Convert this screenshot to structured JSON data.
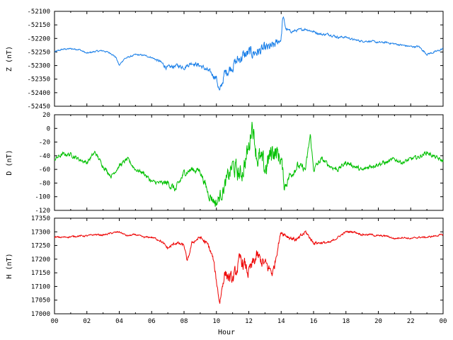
{
  "chart_data": [
    {
      "type": "line",
      "ylabel": "Z (nT)",
      "color": "#1a7fe8",
      "ylim": [
        -52450,
        -52100
      ],
      "yticks": [
        -52100,
        -52150,
        -52200,
        -52250,
        -52300,
        -52350,
        -52400,
        -52450
      ],
      "x": [
        0,
        0.5,
        1,
        1.5,
        2,
        2.5,
        3,
        3.5,
        3.8,
        4,
        4.3,
        5,
        5.5,
        6,
        6.5,
        7,
        7.5,
        8,
        8.5,
        9,
        9.5,
        10,
        10.2,
        10.5,
        11,
        11.5,
        12,
        12.5,
        13,
        13.5,
        14,
        14.1,
        14.3,
        14.6,
        15,
        15.5,
        16,
        16.5,
        17,
        17.5,
        18,
        18.5,
        19,
        19.5,
        20,
        20.5,
        21,
        21.5,
        22,
        22.5,
        23,
        23.5,
        24
      ],
      "values": [
        -52250,
        -52240,
        -52238,
        -52240,
        -52255,
        -52248,
        -52245,
        -52255,
        -52270,
        -52300,
        -52275,
        -52260,
        -52262,
        -52270,
        -52285,
        -52310,
        -52300,
        -52305,
        -52290,
        -52300,
        -52320,
        -52345,
        -52400,
        -52330,
        -52300,
        -52270,
        -52255,
        -52250,
        -52240,
        -52230,
        -52200,
        -52120,
        -52165,
        -52175,
        -52170,
        -52165,
        -52175,
        -52185,
        -52185,
        -52195,
        -52195,
        -52205,
        -52210,
        -52210,
        -52215,
        -52215,
        -52220,
        -52225,
        -52230,
        -52230,
        -52258,
        -52250,
        -52238
      ],
      "noise": [
        5,
        5,
        5,
        5,
        5,
        5,
        5,
        5,
        5,
        5,
        5,
        5,
        5,
        5,
        10,
        15,
        12,
        15,
        12,
        15,
        15,
        20,
        25,
        30,
        35,
        40,
        40,
        35,
        35,
        30,
        20,
        20,
        10,
        8,
        8,
        8,
        8,
        8,
        8,
        8,
        6,
        6,
        6,
        6,
        6,
        6,
        6,
        6,
        6,
        6,
        6,
        6,
        6
      ]
    },
    {
      "type": "line",
      "ylabel": "D (nT)",
      "color": "#00c000",
      "ylim": [
        -120,
        20
      ],
      "yticks": [
        20,
        0,
        -20,
        -40,
        -60,
        -80,
        -100,
        -120
      ],
      "x": [
        0,
        0.5,
        1,
        1.5,
        2,
        2.5,
        3,
        3.5,
        4,
        4.5,
        5,
        5.5,
        6,
        6.5,
        7,
        7.5,
        8,
        8.5,
        9,
        9.5,
        10,
        10.5,
        11,
        11.5,
        12,
        12.2,
        12.5,
        13,
        13.5,
        14,
        14.2,
        14.5,
        15,
        15.5,
        15.8,
        16,
        16.5,
        17,
        17.5,
        18,
        18.5,
        19,
        19.5,
        20,
        20.5,
        21,
        21.5,
        22,
        22.5,
        23,
        23.5,
        24
      ],
      "values": [
        -45,
        -38,
        -38,
        -45,
        -50,
        -35,
        -55,
        -70,
        -55,
        -45,
        -60,
        -65,
        -78,
        -80,
        -80,
        -90,
        -65,
        -60,
        -62,
        -95,
        -110,
        -85,
        -55,
        -70,
        -30,
        10,
        -40,
        -60,
        -30,
        -45,
        -85,
        -70,
        -55,
        -60,
        -10,
        -60,
        -45,
        -55,
        -60,
        -50,
        -55,
        -62,
        -55,
        -52,
        -50,
        -45,
        -50,
        -45,
        -42,
        -35,
        -42,
        -48
      ],
      "noise": [
        5,
        5,
        5,
        5,
        5,
        5,
        5,
        5,
        5,
        5,
        5,
        5,
        5,
        5,
        8,
        10,
        8,
        8,
        8,
        12,
        15,
        18,
        25,
        25,
        30,
        20,
        30,
        30,
        30,
        20,
        15,
        10,
        10,
        8,
        8,
        8,
        6,
        6,
        6,
        6,
        6,
        6,
        6,
        6,
        6,
        5,
        5,
        5,
        5,
        5,
        5,
        5
      ]
    },
    {
      "type": "line",
      "ylabel": "H (nT)",
      "color": "#ee0000",
      "ylim": [
        17000,
        17350
      ],
      "yticks": [
        17350,
        17300,
        17250,
        17200,
        17150,
        17100,
        17050,
        17000
      ],
      "xlabel": "Hour",
      "xlim": [
        0,
        24
      ],
      "xticks": [
        "00",
        "02",
        "04",
        "06",
        "08",
        "10",
        "12",
        "14",
        "16",
        "18",
        "20",
        "22",
        "00"
      ],
      "x": [
        0,
        0.5,
        1,
        1.5,
        2,
        2.5,
        3,
        3.5,
        4,
        4.5,
        5,
        5.5,
        6,
        6.5,
        7,
        7.5,
        8,
        8.2,
        8.5,
        9,
        9.5,
        9.8,
        10,
        10.2,
        10.5,
        11,
        11.5,
        12,
        12.5,
        13,
        13.5,
        13.8,
        14,
        14.5,
        15,
        15.5,
        16,
        16.5,
        17,
        17.5,
        18,
        18.5,
        19,
        19.5,
        20,
        20.5,
        21,
        21.5,
        22,
        22.5,
        23,
        23.5,
        24
      ],
      "values": [
        17280,
        17280,
        17282,
        17285,
        17285,
        17290,
        17288,
        17295,
        17300,
        17285,
        17290,
        17280,
        17280,
        17270,
        17240,
        17260,
        17250,
        17190,
        17260,
        17280,
        17250,
        17200,
        17120,
        17040,
        17150,
        17120,
        17200,
        17150,
        17210,
        17180,
        17150,
        17250,
        17300,
        17280,
        17270,
        17300,
        17260,
        17260,
        17260,
        17280,
        17300,
        17300,
        17290,
        17290,
        17285,
        17285,
        17275,
        17280,
        17275,
        17280,
        17280,
        17285,
        17290
      ],
      "noise": [
        5,
        5,
        5,
        5,
        5,
        5,
        5,
        5,
        5,
        5,
        5,
        5,
        5,
        8,
        10,
        10,
        10,
        10,
        10,
        10,
        15,
        20,
        20,
        20,
        35,
        40,
        45,
        45,
        40,
        40,
        35,
        20,
        15,
        15,
        15,
        12,
        10,
        8,
        8,
        6,
        6,
        6,
        6,
        6,
        6,
        5,
        5,
        5,
        5,
        5,
        5,
        5,
        5
      ]
    }
  ]
}
